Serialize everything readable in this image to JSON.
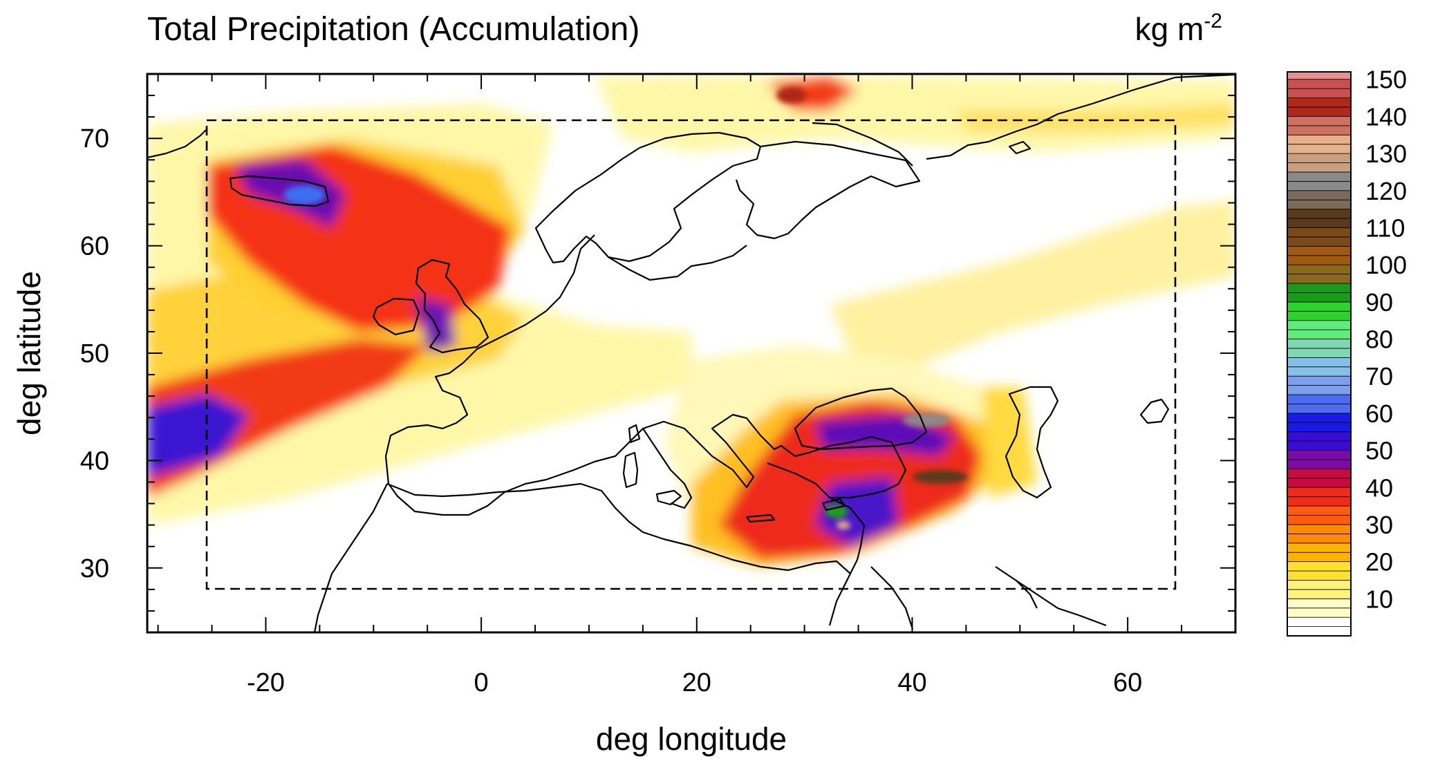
{
  "title": "Total Precipitation (Accumulation)",
  "units": {
    "base": "kg m",
    "exponent": "-2"
  },
  "x_axis": {
    "label": "deg longitude",
    "range": [
      -31,
      70
    ],
    "ticks": [
      -20,
      0,
      20,
      40,
      60
    ],
    "tick_labels": [
      "-20",
      "0",
      "20",
      "40",
      "60"
    ]
  },
  "y_axis": {
    "label": "deg latitude",
    "range": [
      24,
      76
    ],
    "ticks": [
      30,
      40,
      50,
      60,
      70
    ],
    "tick_labels": [
      "30",
      "40",
      "50",
      "60",
      "70"
    ]
  },
  "domain_box": {
    "lon": [
      -25.5,
      64.5
    ],
    "lat": [
      28.3,
      71.7
    ],
    "style": "dashed"
  },
  "colorbar": {
    "min": 0,
    "max": 152,
    "step": 2.5,
    "tick_values": [
      10,
      20,
      30,
      40,
      50,
      60,
      70,
      80,
      90,
      100,
      110,
      120,
      130,
      140,
      150
    ],
    "tick_labels": [
      "10",
      "20",
      "30",
      "40",
      "50",
      "60",
      "70",
      "80",
      "90",
      "100",
      "110",
      "120",
      "130",
      "140",
      "150"
    ],
    "stops": [
      [
        0,
        "#ffffff"
      ],
      [
        5,
        "#fffcc4"
      ],
      [
        10,
        "#fff27a"
      ],
      [
        15,
        "#ffe02e"
      ],
      [
        20,
        "#ffb300"
      ],
      [
        25,
        "#ff8a00"
      ],
      [
        30,
        "#ff5a10"
      ],
      [
        35,
        "#f22a1a"
      ],
      [
        40,
        "#c80a40"
      ],
      [
        45,
        "#7b0aa6"
      ],
      [
        50,
        "#3a0ad6"
      ],
      [
        55,
        "#1a1ae6"
      ],
      [
        60,
        "#4a6cf0"
      ],
      [
        65,
        "#7e9ef0"
      ],
      [
        70,
        "#86c0e6"
      ],
      [
        75,
        "#7ed8b4"
      ],
      [
        80,
        "#60ec7c"
      ],
      [
        85,
        "#2ad42a"
      ],
      [
        90,
        "#1a9a1a"
      ],
      [
        95,
        "#8a6a1a"
      ],
      [
        100,
        "#a05a10"
      ],
      [
        105,
        "#7a4a18"
      ],
      [
        110,
        "#5a3a1a"
      ],
      [
        115,
        "#7a6a5a"
      ],
      [
        120,
        "#8a8a8a"
      ],
      [
        125,
        "#c8a080"
      ],
      [
        130,
        "#e8b088"
      ],
      [
        135,
        "#d07060"
      ],
      [
        140,
        "#b02818"
      ],
      [
        145,
        "#c85050"
      ],
      [
        150,
        "#e89090"
      ]
    ]
  },
  "colors": {
    "land_outline": "#000000",
    "background": "#ffffff"
  }
}
